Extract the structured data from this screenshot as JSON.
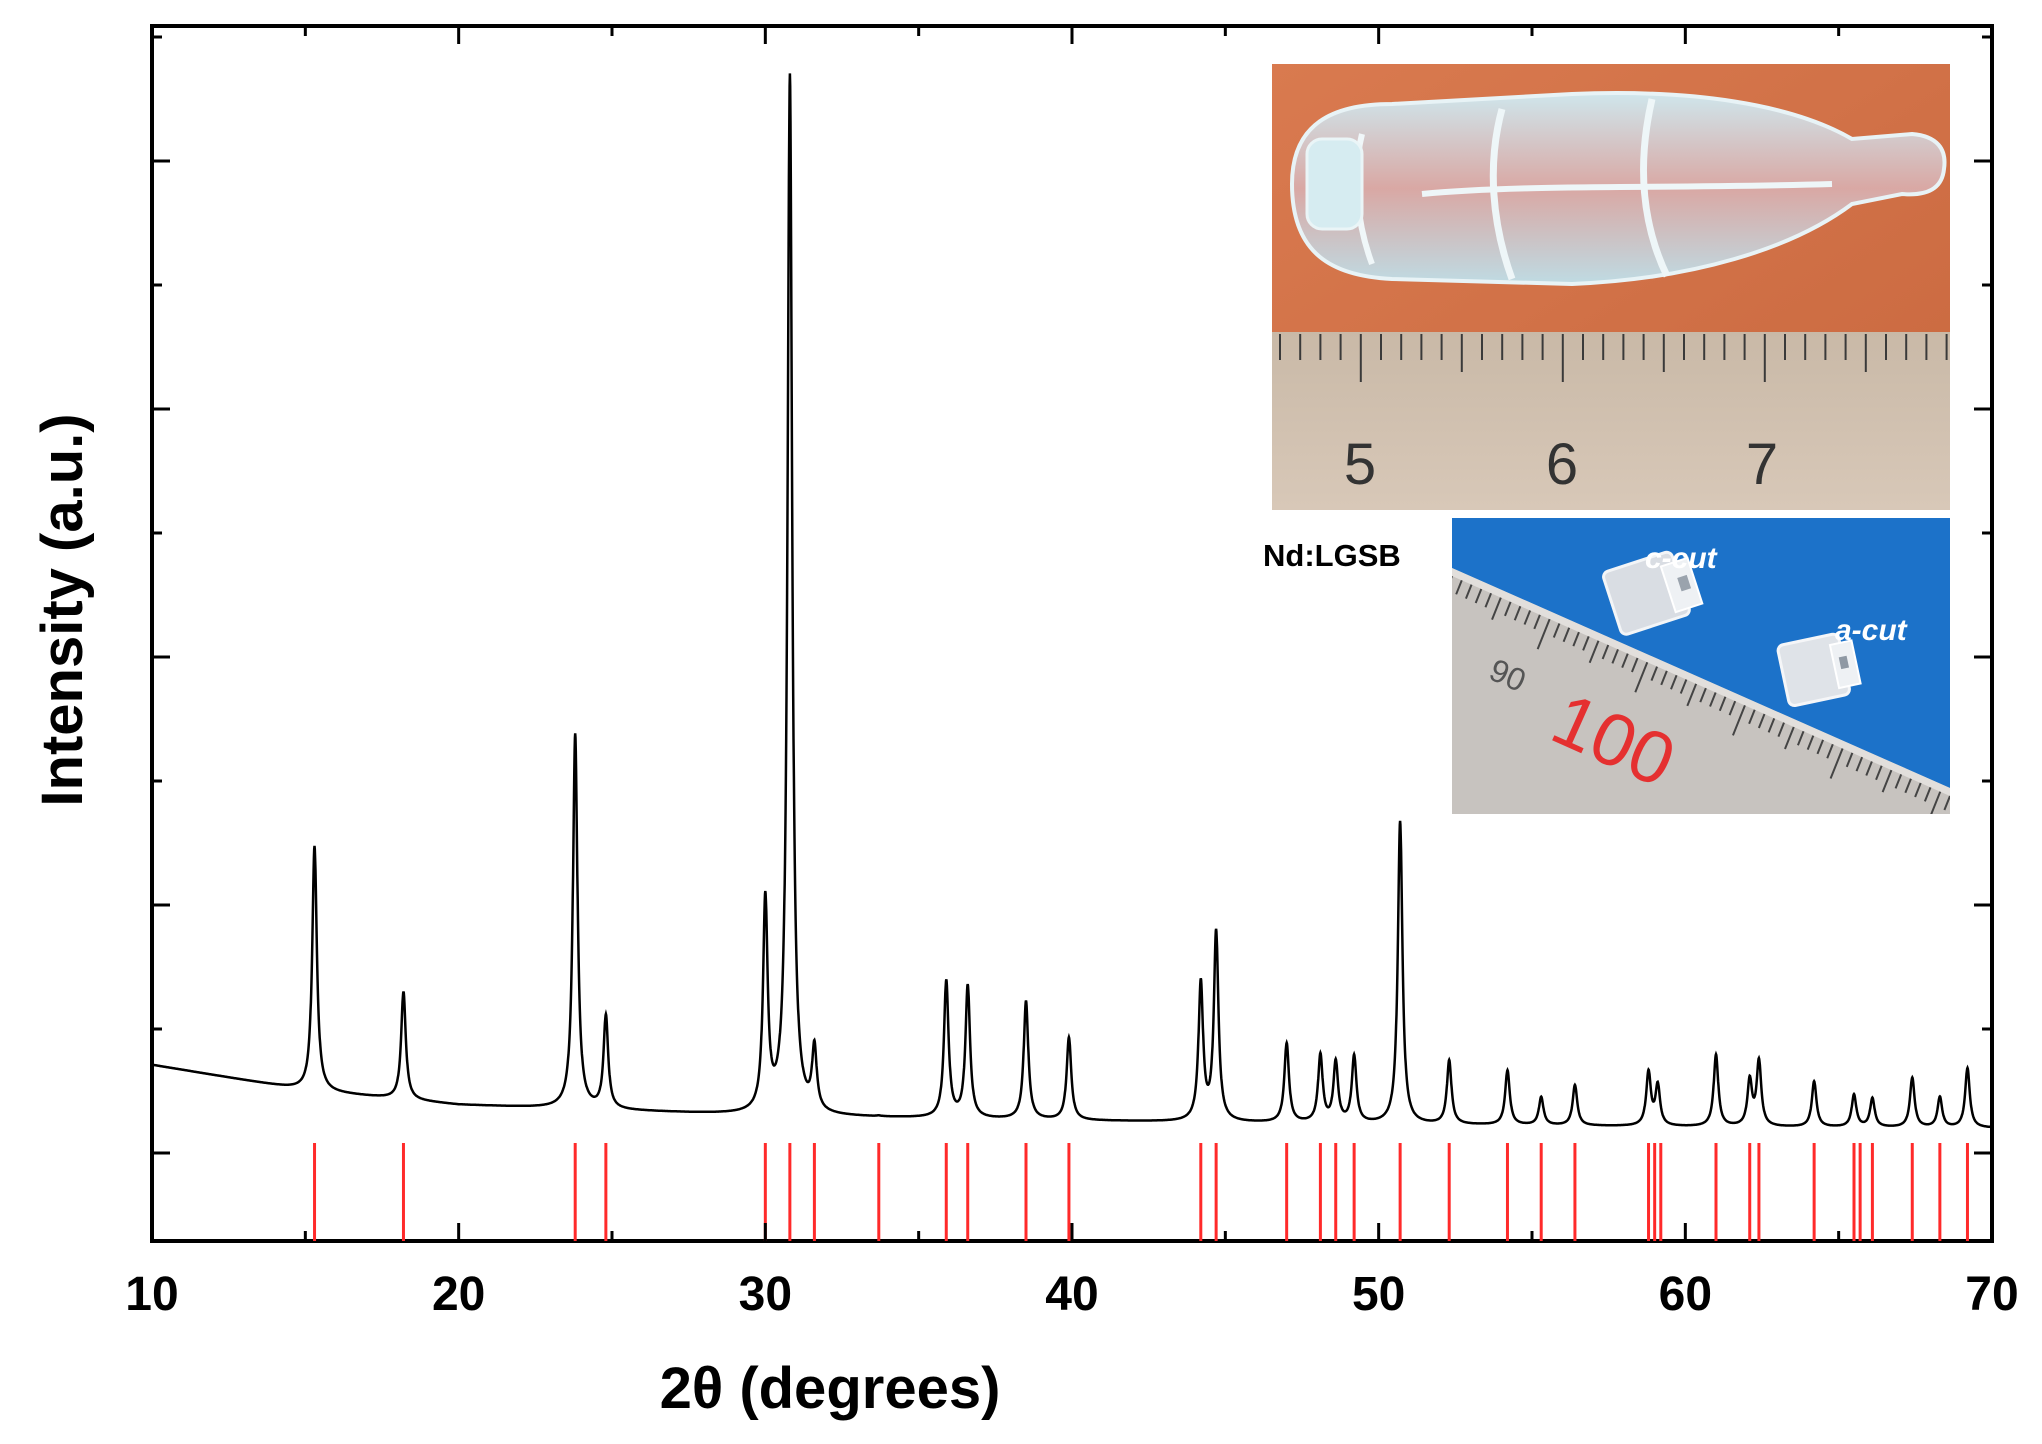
{
  "chart_data": {
    "type": "line",
    "xlabel": "2θ (degrees)",
    "ylabel": "Intensity (a.u.)",
    "xlim": [
      10,
      70
    ],
    "ylim": [
      0,
      1
    ],
    "x_ticks": [
      10,
      20,
      30,
      40,
      50,
      60,
      70
    ],
    "y_ticks_labeled": false,
    "grid": false,
    "baseline": {
      "x": [
        10,
        15,
        20,
        30,
        40,
        50,
        60,
        70
      ],
      "y": [
        0.145,
        0.124,
        0.112,
        0.103,
        0.099,
        0.096,
        0.094,
        0.093
      ]
    },
    "peaks": [
      {
        "x": 15.3,
        "y": 0.325
      },
      {
        "x": 18.2,
        "y": 0.205
      },
      {
        "x": 23.8,
        "y": 0.417
      },
      {
        "x": 24.8,
        "y": 0.184
      },
      {
        "x": 27.7,
        "y": 0.105
      },
      {
        "x": 30.0,
        "y": 0.277
      },
      {
        "x": 30.8,
        "y": 0.958
      },
      {
        "x": 31.6,
        "y": 0.154
      },
      {
        "x": 33.7,
        "y": 0.102
      },
      {
        "x": 35.9,
        "y": 0.213
      },
      {
        "x": 36.6,
        "y": 0.209
      },
      {
        "x": 38.5,
        "y": 0.197
      },
      {
        "x": 39.9,
        "y": 0.167
      },
      {
        "x": 44.2,
        "y": 0.211
      },
      {
        "x": 44.7,
        "y": 0.253
      },
      {
        "x": 47.0,
        "y": 0.162
      },
      {
        "x": 48.1,
        "y": 0.152
      },
      {
        "x": 48.6,
        "y": 0.146
      },
      {
        "x": 49.2,
        "y": 0.151
      },
      {
        "x": 50.7,
        "y": 0.345
      },
      {
        "x": 52.3,
        "y": 0.148
      },
      {
        "x": 54.2,
        "y": 0.14
      },
      {
        "x": 55.3,
        "y": 0.118
      },
      {
        "x": 56.4,
        "y": 0.128
      },
      {
        "x": 58.8,
        "y": 0.138
      },
      {
        "x": 59.1,
        "y": 0.127
      },
      {
        "x": 61.0,
        "y": 0.153
      },
      {
        "x": 62.1,
        "y": 0.131
      },
      {
        "x": 62.4,
        "y": 0.147
      },
      {
        "x": 64.2,
        "y": 0.131
      },
      {
        "x": 65.5,
        "y": 0.12
      },
      {
        "x": 66.1,
        "y": 0.117
      },
      {
        "x": 67.4,
        "y": 0.134
      },
      {
        "x": 68.3,
        "y": 0.118
      },
      {
        "x": 69.2,
        "y": 0.142
      }
    ],
    "reference_lines": {
      "color": "#ff2a2a",
      "x": [
        15.3,
        18.2,
        23.8,
        24.8,
        30.0,
        30.8,
        31.6,
        33.7,
        35.9,
        36.6,
        38.5,
        39.9,
        44.2,
        44.7,
        47.0,
        48.1,
        48.6,
        49.2,
        50.7,
        52.3,
        54.2,
        55.3,
        56.4,
        58.8,
        59.0,
        59.2,
        61.0,
        62.1,
        62.4,
        64.2,
        65.5,
        65.7,
        66.1,
        67.4,
        68.3,
        69.2
      ]
    },
    "line_color": "#000000"
  },
  "inset": {
    "label": "Nd:LGSB",
    "top_photo": {
      "ruler_numbers": [
        "5",
        "6",
        "7"
      ]
    },
    "bottom_photo": {
      "cut_labels": [
        "c-cut",
        "a-cut"
      ],
      "ruler_numbers": [
        "90",
        "100"
      ]
    }
  }
}
